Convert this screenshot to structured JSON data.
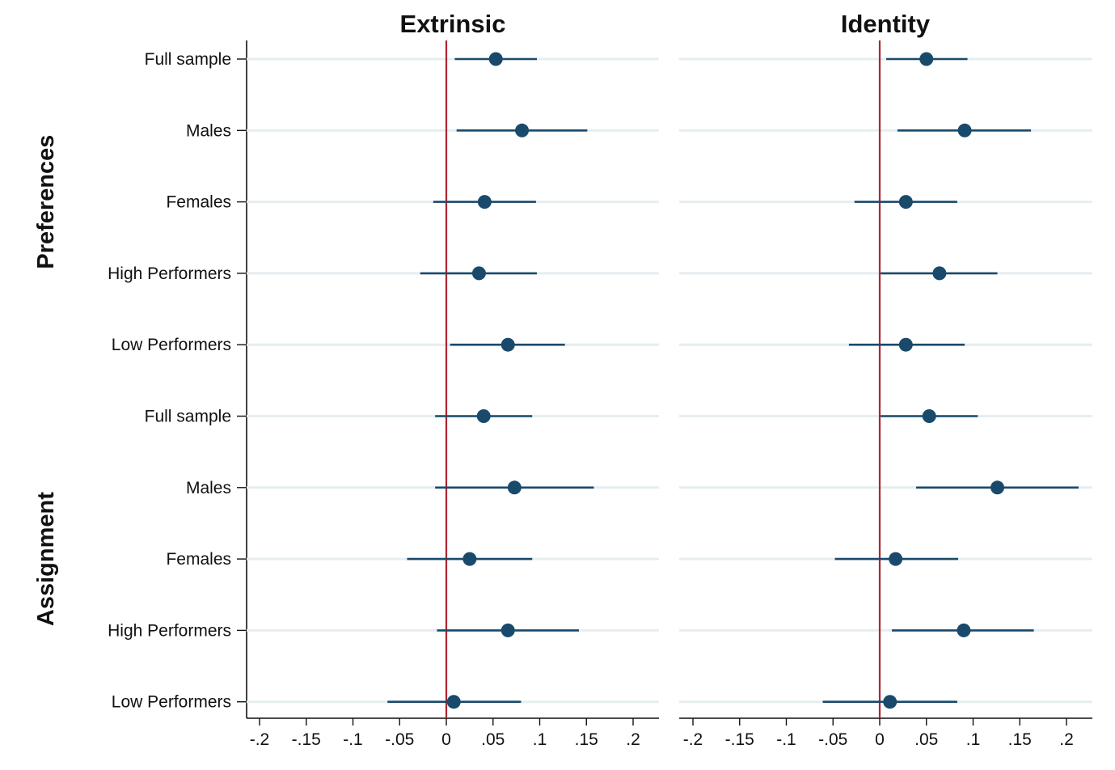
{
  "chart_data": {
    "type": "scatter",
    "colors": {
      "marker": "#1a4a6b",
      "reference_line": "#b0242f",
      "grid": "#e6eef0"
    },
    "rows": [
      "Full sample",
      "Males",
      "Females",
      "High Performers",
      "Low Performers",
      "Full sample",
      "Males",
      "Females",
      "High Performers",
      "Low Performers"
    ],
    "groups": [
      {
        "label": "Preferences",
        "rows": [
          0,
          4
        ]
      },
      {
        "label": "Assignment",
        "rows": [
          5,
          9
        ]
      }
    ],
    "xlim": [
      -0.2,
      0.2
    ],
    "x_ticks": [
      -0.2,
      -0.15,
      -0.1,
      -0.05,
      0,
      0.05,
      0.1,
      0.15,
      0.2
    ],
    "x_tick_labels": [
      "-.2",
      "-.15",
      "-.1",
      "-.05",
      "0",
      ".05",
      ".1",
      ".15",
      ".2"
    ],
    "reference_x": 0,
    "panels": [
      {
        "title": "Extrinsic",
        "estimates": [
          0.053,
          0.081,
          0.041,
          0.035,
          0.066,
          0.04,
          0.073,
          0.025,
          0.066,
          0.008
        ],
        "ci_low": [
          0.009,
          0.011,
          -0.014,
          -0.028,
          0.004,
          -0.012,
          -0.012,
          -0.042,
          -0.01,
          -0.063
        ],
        "ci_high": [
          0.097,
          0.151,
          0.096,
          0.097,
          0.127,
          0.092,
          0.158,
          0.092,
          0.142,
          0.08
        ]
      },
      {
        "title": "Identity",
        "estimates": [
          0.05,
          0.091,
          0.028,
          0.064,
          0.028,
          0.053,
          0.126,
          0.017,
          0.09,
          0.011
        ],
        "ci_low": [
          0.007,
          0.019,
          -0.027,
          0.001,
          -0.033,
          0.001,
          0.039,
          -0.048,
          0.013,
          -0.061
        ],
        "ci_high": [
          0.094,
          0.162,
          0.083,
          0.126,
          0.091,
          0.105,
          0.213,
          0.084,
          0.165,
          0.083
        ]
      }
    ]
  }
}
